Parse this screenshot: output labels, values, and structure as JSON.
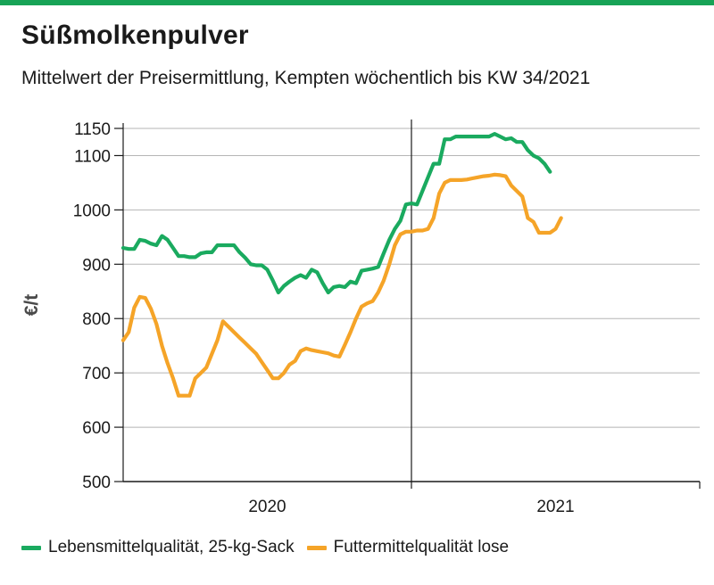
{
  "header": {
    "title": "Süßmolkenpulver",
    "subtitle": "Mittelwert der Preisermittlung, Kempten wöchentlich bis KW 34/2021"
  },
  "colors": {
    "brand": "#17a356",
    "series_green": "#1aaa5f",
    "series_orange": "#f5a428"
  },
  "chart_data": {
    "type": "line",
    "ylabel": "€/t",
    "ylim": [
      500,
      1150
    ],
    "yticks": [
      500,
      600,
      700,
      800,
      900,
      1000,
      1100,
      1150
    ],
    "xlim": [
      0,
      104
    ],
    "x_unit": "week index from start of 2020",
    "x_category_labels": [
      {
        "label": "2020",
        "x": 26
      },
      {
        "label": "2021",
        "x": 78
      }
    ],
    "year_divider_x": 52,
    "grid": "horizontal",
    "legend_position": "bottom-left",
    "series": [
      {
        "name": "Lebensmittelqualität, 25-kg-Sack",
        "color": "#1aaa5f",
        "points": [
          [
            0,
            930
          ],
          [
            1,
            928
          ],
          [
            2,
            928
          ],
          [
            3,
            945
          ],
          [
            4,
            943
          ],
          [
            5,
            938
          ],
          [
            6,
            935
          ],
          [
            7,
            952
          ],
          [
            8,
            945
          ],
          [
            9,
            930
          ],
          [
            10,
            915
          ],
          [
            11,
            915
          ],
          [
            12,
            913
          ],
          [
            13,
            913
          ],
          [
            14,
            920
          ],
          [
            15,
            922
          ],
          [
            16,
            922
          ],
          [
            17,
            935
          ],
          [
            18,
            935
          ],
          [
            19,
            935
          ],
          [
            20,
            935
          ],
          [
            21,
            922
          ],
          [
            22,
            912
          ],
          [
            23,
            900
          ],
          [
            24,
            898
          ],
          [
            25,
            898
          ],
          [
            26,
            890
          ],
          [
            27,
            870
          ],
          [
            28,
            848
          ],
          [
            29,
            860
          ],
          [
            30,
            868
          ],
          [
            31,
            875
          ],
          [
            32,
            880
          ],
          [
            33,
            875
          ],
          [
            34,
            890
          ],
          [
            35,
            885
          ],
          [
            36,
            865
          ],
          [
            37,
            848
          ],
          [
            38,
            858
          ],
          [
            39,
            860
          ],
          [
            40,
            858
          ],
          [
            41,
            868
          ],
          [
            42,
            865
          ],
          [
            43,
            888
          ],
          [
            44,
            890
          ],
          [
            45,
            892
          ],
          [
            46,
            895
          ],
          [
            47,
            920
          ],
          [
            48,
            945
          ],
          [
            49,
            965
          ],
          [
            50,
            980
          ],
          [
            51,
            1010
          ],
          [
            52,
            1012
          ],
          [
            53,
            1010
          ],
          [
            54,
            1035
          ],
          [
            55,
            1060
          ],
          [
            56,
            1085
          ],
          [
            57,
            1085
          ],
          [
            58,
            1130
          ],
          [
            59,
            1130
          ],
          [
            60,
            1135
          ],
          [
            61,
            1135
          ],
          [
            62,
            1135
          ],
          [
            63,
            1135
          ],
          [
            64,
            1135
          ],
          [
            65,
            1135
          ],
          [
            66,
            1135
          ],
          [
            67,
            1140
          ],
          [
            68,
            1135
          ],
          [
            69,
            1130
          ],
          [
            70,
            1132
          ],
          [
            71,
            1125
          ],
          [
            72,
            1125
          ],
          [
            73,
            1110
          ],
          [
            74,
            1100
          ],
          [
            75,
            1095
          ],
          [
            76,
            1085
          ],
          [
            77,
            1070
          ]
        ]
      },
      {
        "name": "Futtermittelqualität lose",
        "color": "#f5a428",
        "points": [
          [
            0,
            760
          ],
          [
            1,
            775
          ],
          [
            2,
            820
          ],
          [
            3,
            840
          ],
          [
            4,
            838
          ],
          [
            5,
            818
          ],
          [
            6,
            790
          ],
          [
            7,
            750
          ],
          [
            8,
            718
          ],
          [
            9,
            690
          ],
          [
            10,
            658
          ],
          [
            11,
            658
          ],
          [
            12,
            658
          ],
          [
            13,
            690
          ],
          [
            14,
            700
          ],
          [
            15,
            710
          ],
          [
            16,
            735
          ],
          [
            17,
            760
          ],
          [
            18,
            795
          ],
          [
            19,
            785
          ],
          [
            20,
            775
          ],
          [
            21,
            765
          ],
          [
            22,
            755
          ],
          [
            23,
            745
          ],
          [
            24,
            735
          ],
          [
            25,
            720
          ],
          [
            26,
            705
          ],
          [
            27,
            690
          ],
          [
            28,
            690
          ],
          [
            29,
            700
          ],
          [
            30,
            715
          ],
          [
            31,
            722
          ],
          [
            32,
            740
          ],
          [
            33,
            745
          ],
          [
            34,
            742
          ],
          [
            35,
            740
          ],
          [
            36,
            738
          ],
          [
            37,
            736
          ],
          [
            38,
            732
          ],
          [
            39,
            730
          ],
          [
            40,
            752
          ],
          [
            41,
            775
          ],
          [
            42,
            800
          ],
          [
            43,
            822
          ],
          [
            44,
            828
          ],
          [
            45,
            832
          ],
          [
            46,
            848
          ],
          [
            47,
            870
          ],
          [
            48,
            900
          ],
          [
            49,
            935
          ],
          [
            50,
            955
          ],
          [
            51,
            960
          ],
          [
            52,
            960
          ],
          [
            53,
            962
          ],
          [
            54,
            962
          ],
          [
            55,
            965
          ],
          [
            56,
            985
          ],
          [
            57,
            1030
          ],
          [
            58,
            1050
          ],
          [
            59,
            1055
          ],
          [
            60,
            1055
          ],
          [
            61,
            1055
          ],
          [
            62,
            1056
          ],
          [
            63,
            1058
          ],
          [
            64,
            1060
          ],
          [
            65,
            1062
          ],
          [
            66,
            1063
          ],
          [
            67,
            1065
          ],
          [
            68,
            1064
          ],
          [
            69,
            1062
          ],
          [
            70,
            1045
          ],
          [
            71,
            1035
          ],
          [
            72,
            1025
          ],
          [
            73,
            985
          ],
          [
            74,
            978
          ],
          [
            75,
            958
          ],
          [
            76,
            958
          ],
          [
            77,
            958
          ],
          [
            78,
            965
          ],
          [
            79,
            985
          ]
        ]
      }
    ]
  }
}
